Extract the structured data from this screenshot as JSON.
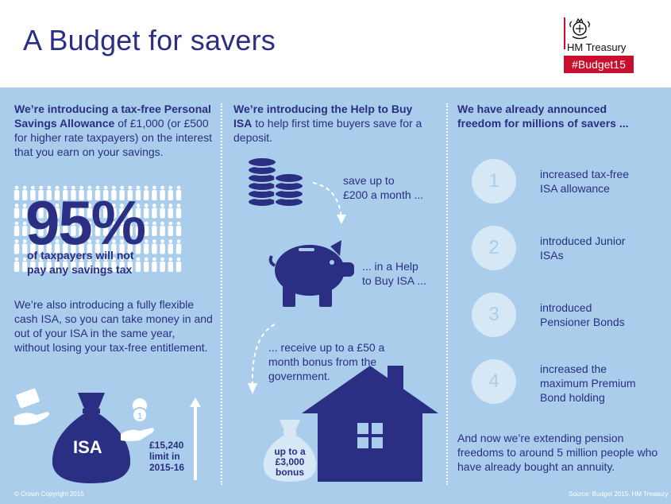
{
  "header": {
    "title": "A Budget for savers",
    "brand": "HM Treasury",
    "hashtag": "#Budget15"
  },
  "col1": {
    "intro_bold": "We’re introducing a tax-free Personal Savings Allowance",
    "intro_rest": " of £1,000 (or £500 for higher rate taxpayers) on the interest that you earn on your savings.",
    "stat": "95%",
    "stat_caption_line1": "of taxpayers will not",
    "stat_caption_line2": "pay any savings tax",
    "isa_text": "We’re also introducing a fully flexible cash ISA, so you can take money in and out of your ISA in the same year, without losing your tax-free entitlement.",
    "isa_label": "ISA",
    "limit_line1": "£15,240",
    "limit_line2": "limit in",
    "limit_line3": "2015-16",
    "coin_label": "1"
  },
  "col2": {
    "intro_bold": "We’re introducing the Help to Buy ISA",
    "intro_rest": " to help first time buyers save for a deposit.",
    "step1_line1": "save up to",
    "step1_line2": "£200 a month ...",
    "step2_line1": "... in a Help",
    "step2_line2": "to Buy ISA ...",
    "step3": "... receive up to a £50 a month bonus from the government.",
    "bonus_line1": "up to a",
    "bonus_line2": "£3,000",
    "bonus_line3": "bonus"
  },
  "col3": {
    "intro": "We have already announced freedom for millions of savers ...",
    "items": [
      {
        "num": "1",
        "line1": "increased tax-free",
        "line2": "ISA allowance",
        "line3": ""
      },
      {
        "num": "2",
        "line1": "introduced Junior",
        "line2": "ISAs",
        "line3": ""
      },
      {
        "num": "3",
        "line1": "introduced",
        "line2": "Pensioner Bonds",
        "line3": ""
      },
      {
        "num": "4",
        "line1": "increased the",
        "line2": "maximum Premium",
        "line3": "Bond holding"
      }
    ],
    "outro": "And now we’re extending pension freedoms to around 5 million people who have already bought an annuity."
  },
  "footer": {
    "copyright": "© Crown Copyright 2015",
    "source": "Source: Budget 2015, HM Treasury"
  },
  "colors": {
    "navy": "#2b2f83",
    "panel": "#a9cdea",
    "red": "#c8102e",
    "light": "#d6e7f5"
  }
}
